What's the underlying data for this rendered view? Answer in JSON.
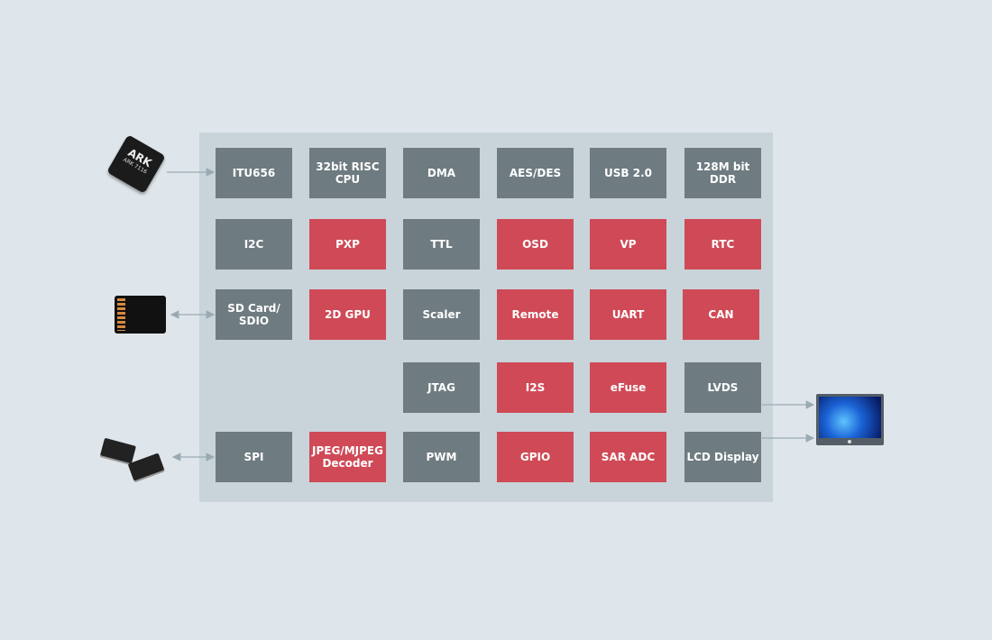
{
  "colors": {
    "background": "#dfe6eb",
    "panel": "#c8d4da",
    "standard_block": "#6e7b80",
    "highlight_block": "#cf4a56",
    "arrow": "#9aaab3"
  },
  "chip": {
    "logo": "ARK",
    "model": "ARK 7116",
    "icon": "chip-icon"
  },
  "peripherals": [
    {
      "name": "sd-card-icon"
    },
    {
      "name": "spi-flash-icon"
    },
    {
      "name": "monitor-icon"
    }
  ],
  "blocks": [
    {
      "label": "ITU656",
      "style": "gray"
    },
    {
      "label": "32bit RISC\nCPU",
      "style": "gray"
    },
    {
      "label": "DMA",
      "style": "gray"
    },
    {
      "label": "AES/DES",
      "style": "gray"
    },
    {
      "label": "USB 2.0",
      "style": "gray"
    },
    {
      "label": "128M bit\nDDR",
      "style": "gray"
    },
    {
      "label": "I2C",
      "style": "gray"
    },
    {
      "label": "PXP",
      "style": "red"
    },
    {
      "label": "TTL",
      "style": "gray"
    },
    {
      "label": "OSD",
      "style": "red"
    },
    {
      "label": "VP",
      "style": "red"
    },
    {
      "label": "RTC",
      "style": "red"
    },
    {
      "label": "SD Card/\nSDIO",
      "style": "gray"
    },
    {
      "label": "2D GPU",
      "style": "red"
    },
    {
      "label": "Scaler",
      "style": "gray"
    },
    {
      "label": "Remote",
      "style": "red"
    },
    {
      "label": "UART",
      "style": "red"
    },
    {
      "label": "CAN",
      "style": "red"
    },
    {
      "label": "JTAG",
      "style": "gray"
    },
    {
      "label": "I2S",
      "style": "red"
    },
    {
      "label": "eFuse",
      "style": "red"
    },
    {
      "label": "LVDS",
      "style": "gray"
    },
    {
      "label": "SPI",
      "style": "gray"
    },
    {
      "label": "JPEG/MJPEG\nDecoder",
      "style": "red"
    },
    {
      "label": "PWM",
      "style": "gray"
    },
    {
      "label": "GPIO",
      "style": "red"
    },
    {
      "label": "SAR ADC",
      "style": "red"
    },
    {
      "label": "LCD Display",
      "style": "gray"
    }
  ]
}
